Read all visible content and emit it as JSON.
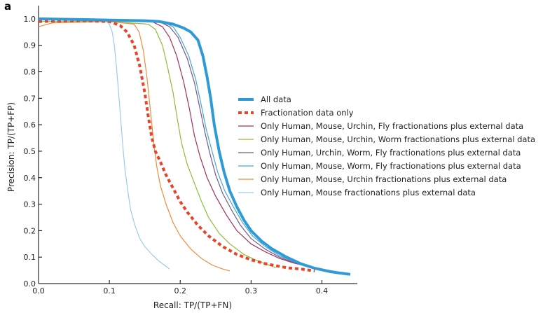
{
  "panel_label": "a",
  "chart_data": {
    "type": "line",
    "title": "",
    "xlabel": "Recall: TP/(TP+FN)",
    "ylabel": "Precision: TP/(TP+FP)",
    "xlim": [
      0.0,
      0.45
    ],
    "ylim": [
      0.0,
      1.05
    ],
    "xticks": [
      "0.0",
      "0.1",
      "0.2",
      "0.3",
      "0.4"
    ],
    "yticks": [
      "0.0",
      "0.1",
      "0.2",
      "0.3",
      "0.4",
      "0.5",
      "0.6",
      "0.7",
      "0.8",
      "0.9",
      "1.0"
    ],
    "grid": false,
    "legend_position": "right",
    "series": [
      {
        "name": "All data",
        "color": "#2e9bd6",
        "style": "solid-thick",
        "points": [
          [
            0.0,
            1.0
          ],
          [
            0.05,
            0.998
          ],
          [
            0.1,
            0.995
          ],
          [
            0.15,
            0.993
          ],
          [
            0.17,
            0.99
          ],
          [
            0.19,
            0.98
          ],
          [
            0.205,
            0.965
          ],
          [
            0.215,
            0.95
          ],
          [
            0.225,
            0.92
          ],
          [
            0.232,
            0.86
          ],
          [
            0.238,
            0.78
          ],
          [
            0.243,
            0.7
          ],
          [
            0.248,
            0.6
          ],
          [
            0.255,
            0.5
          ],
          [
            0.262,
            0.42
          ],
          [
            0.27,
            0.35
          ],
          [
            0.28,
            0.29
          ],
          [
            0.29,
            0.24
          ],
          [
            0.3,
            0.2
          ],
          [
            0.315,
            0.16
          ],
          [
            0.33,
            0.13
          ],
          [
            0.35,
            0.1
          ],
          [
            0.37,
            0.075
          ],
          [
            0.39,
            0.058
          ],
          [
            0.41,
            0.046
          ],
          [
            0.425,
            0.04
          ],
          [
            0.44,
            0.035
          ]
        ]
      },
      {
        "name": "Fractionation data only",
        "color": "#e8442a",
        "style": "dashed-thick",
        "points": [
          [
            0.0,
            0.99
          ],
          [
            0.05,
            0.993
          ],
          [
            0.1,
            0.99
          ],
          [
            0.115,
            0.975
          ],
          [
            0.125,
            0.95
          ],
          [
            0.135,
            0.9
          ],
          [
            0.143,
            0.82
          ],
          [
            0.15,
            0.72
          ],
          [
            0.155,
            0.63
          ],
          [
            0.16,
            0.55
          ],
          [
            0.165,
            0.5
          ],
          [
            0.172,
            0.46
          ],
          [
            0.18,
            0.41
          ],
          [
            0.19,
            0.36
          ],
          [
            0.2,
            0.31
          ],
          [
            0.21,
            0.27
          ],
          [
            0.225,
            0.22
          ],
          [
            0.24,
            0.18
          ],
          [
            0.26,
            0.14
          ],
          [
            0.28,
            0.11
          ],
          [
            0.3,
            0.09
          ],
          [
            0.32,
            0.075
          ],
          [
            0.35,
            0.06
          ],
          [
            0.37,
            0.055
          ],
          [
            0.39,
            0.048
          ]
        ]
      },
      {
        "name": "Only Human, Mouse, Urchin, Fly fractionations plus external data",
        "color": "#a0305a",
        "style": "solid",
        "points": [
          [
            0.0,
            1.0
          ],
          [
            0.1,
            0.995
          ],
          [
            0.16,
            0.99
          ],
          [
            0.175,
            0.97
          ],
          [
            0.185,
            0.93
          ],
          [
            0.195,
            0.86
          ],
          [
            0.205,
            0.76
          ],
          [
            0.213,
            0.66
          ],
          [
            0.22,
            0.56
          ],
          [
            0.228,
            0.48
          ],
          [
            0.238,
            0.4
          ],
          [
            0.25,
            0.33
          ],
          [
            0.265,
            0.26
          ],
          [
            0.28,
            0.2
          ],
          [
            0.3,
            0.15
          ],
          [
            0.32,
            0.12
          ],
          [
            0.34,
            0.095
          ],
          [
            0.36,
            0.078
          ],
          [
            0.38,
            0.065
          ],
          [
            0.4,
            0.055
          ],
          [
            0.42,
            0.045
          ],
          [
            0.43,
            0.04
          ]
        ]
      },
      {
        "name": "Only Human, Mouse, Urchin, Worm fractionations plus external data",
        "color": "#8dbd3a",
        "style": "solid",
        "points": [
          [
            0.0,
            0.99
          ],
          [
            0.1,
            0.99
          ],
          [
            0.155,
            0.98
          ],
          [
            0.165,
            0.96
          ],
          [
            0.175,
            0.9
          ],
          [
            0.182,
            0.82
          ],
          [
            0.19,
            0.72
          ],
          [
            0.196,
            0.62
          ],
          [
            0.202,
            0.53
          ],
          [
            0.21,
            0.45
          ],
          [
            0.22,
            0.38
          ],
          [
            0.23,
            0.31
          ],
          [
            0.24,
            0.25
          ],
          [
            0.255,
            0.19
          ],
          [
            0.27,
            0.15
          ],
          [
            0.29,
            0.11
          ],
          [
            0.31,
            0.085
          ],
          [
            0.325,
            0.07
          ],
          [
            0.335,
            0.06
          ]
        ]
      },
      {
        "name": "Only Human, Urchin, Worm, Fly fractionations plus external data",
        "color": "#6f5a8f",
        "style": "solid",
        "points": [
          [
            0.0,
            1.0
          ],
          [
            0.1,
            0.995
          ],
          [
            0.17,
            0.99
          ],
          [
            0.185,
            0.97
          ],
          [
            0.197,
            0.93
          ],
          [
            0.21,
            0.85
          ],
          [
            0.22,
            0.76
          ],
          [
            0.228,
            0.66
          ],
          [
            0.235,
            0.57
          ],
          [
            0.242,
            0.49
          ],
          [
            0.25,
            0.41
          ],
          [
            0.26,
            0.34
          ],
          [
            0.272,
            0.28
          ],
          [
            0.285,
            0.22
          ],
          [
            0.3,
            0.17
          ],
          [
            0.32,
            0.13
          ],
          [
            0.34,
            0.1
          ],
          [
            0.36,
            0.08
          ],
          [
            0.38,
            0.065
          ],
          [
            0.4,
            0.053
          ],
          [
            0.42,
            0.043
          ],
          [
            0.435,
            0.038
          ]
        ]
      },
      {
        "name": "Only Human, Mouse, Worm, Fly fractionations plus external data",
        "color": "#4aa8c8",
        "style": "solid",
        "points": [
          [
            0.0,
            1.0
          ],
          [
            0.1,
            0.995
          ],
          [
            0.175,
            0.99
          ],
          [
            0.19,
            0.97
          ],
          [
            0.2,
            0.93
          ],
          [
            0.212,
            0.86
          ],
          [
            0.222,
            0.77
          ],
          [
            0.23,
            0.67
          ],
          [
            0.237,
            0.58
          ],
          [
            0.245,
            0.5
          ],
          [
            0.253,
            0.42
          ],
          [
            0.263,
            0.35
          ],
          [
            0.275,
            0.29
          ],
          [
            0.288,
            0.23
          ],
          [
            0.302,
            0.18
          ],
          [
            0.32,
            0.14
          ],
          [
            0.34,
            0.105
          ],
          [
            0.36,
            0.083
          ],
          [
            0.38,
            0.067
          ],
          [
            0.4,
            0.054
          ],
          [
            0.42,
            0.044
          ],
          [
            0.435,
            0.038
          ]
        ]
      },
      {
        "name": "Only Human, Mouse, Urchin fractionations plus external data",
        "color": "#ef8c3a",
        "style": "solid",
        "points": [
          [
            0.0,
            0.97
          ],
          [
            0.02,
            0.985
          ],
          [
            0.1,
            0.99
          ],
          [
            0.135,
            0.98
          ],
          [
            0.142,
            0.95
          ],
          [
            0.148,
            0.88
          ],
          [
            0.153,
            0.78
          ],
          [
            0.157,
            0.68
          ],
          [
            0.16,
            0.6
          ],
          [
            0.163,
            0.52
          ],
          [
            0.167,
            0.44
          ],
          [
            0.172,
            0.37
          ],
          [
            0.18,
            0.3
          ],
          [
            0.19,
            0.23
          ],
          [
            0.2,
            0.18
          ],
          [
            0.215,
            0.13
          ],
          [
            0.23,
            0.095
          ],
          [
            0.245,
            0.07
          ],
          [
            0.26,
            0.055
          ],
          [
            0.27,
            0.048
          ]
        ]
      },
      {
        "name": "Only Human, Mouse fractionations plus external data",
        "color": "#9ccde5",
        "style": "solid",
        "points": [
          [
            0.095,
            0.99
          ],
          [
            0.1,
            0.98
          ],
          [
            0.104,
            0.95
          ],
          [
            0.107,
            0.9
          ],
          [
            0.11,
            0.82
          ],
          [
            0.113,
            0.72
          ],
          [
            0.116,
            0.62
          ],
          [
            0.119,
            0.52
          ],
          [
            0.122,
            0.43
          ],
          [
            0.126,
            0.35
          ],
          [
            0.13,
            0.28
          ],
          [
            0.136,
            0.22
          ],
          [
            0.143,
            0.17
          ],
          [
            0.15,
            0.14
          ],
          [
            0.16,
            0.11
          ],
          [
            0.17,
            0.085
          ],
          [
            0.18,
            0.065
          ],
          [
            0.185,
            0.055
          ]
        ]
      }
    ]
  }
}
